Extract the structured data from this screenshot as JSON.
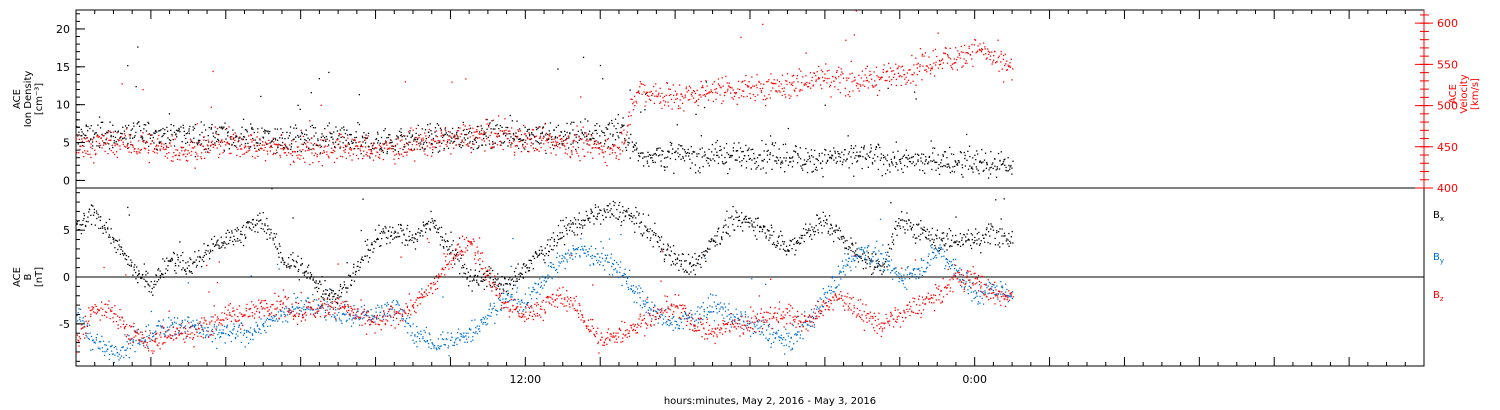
{
  "colors": {
    "density": "#000000",
    "velocity": "#ff0000",
    "bx": "#000000",
    "by": "#0070d0",
    "bz": "#ff0000",
    "axis": "#000000"
  },
  "chart_data": {
    "type": "scatter",
    "x_axis": {
      "title": "hours:minutes, May  2, 2016 - May  3, 2016",
      "range_hours": [
        0,
        36
      ],
      "labeled_ticks": [
        {
          "hour": 12,
          "label": "12:00"
        },
        {
          "hour": 24,
          "label": "0:00"
        }
      ],
      "major_tick_every_hours": 2,
      "minor_tick_every_hours": 0.5
    },
    "panels": [
      {
        "id": "plasma",
        "left_axis": {
          "label_lines": [
            "ACE",
            "Ion Density",
            "[cm⁻³]"
          ],
          "ylim": [
            -1,
            22.5
          ],
          "ticks": [
            0,
            5,
            10,
            15,
            20
          ],
          "tick_labels": [
            "0",
            "5",
            "10",
            "15",
            "20"
          ]
        },
        "right_axis": {
          "label_lines": [
            "ACE",
            "Velocity",
            "[km/s]"
          ],
          "ylim": [
            400,
            616
          ],
          "ticks": [
            400,
            450,
            500,
            550,
            600
          ],
          "tick_labels": [
            "400",
            "450",
            "500",
            "550",
            "600"
          ]
        },
        "series": [
          {
            "key": "density",
            "axis": "left",
            "x_hours": [
              0,
              1,
              2,
              3,
              4,
              5,
              6,
              7,
              8,
              9,
              10,
              11,
              12,
              13,
              14,
              14.5,
              15,
              16,
              17,
              18,
              19,
              20,
              21,
              22,
              23,
              24,
              25
            ],
            "y": [
              6.2,
              6.0,
              6.2,
              6.0,
              5.8,
              5.6,
              5.4,
              5.3,
              5.0,
              5.5,
              5.8,
              6.0,
              6.0,
              6.0,
              6.3,
              6.8,
              3.5,
              3.3,
              3.4,
              3.3,
              3.1,
              2.9,
              3.2,
              2.7,
              2.6,
              2.4,
              2.1
            ],
            "noise": 1.6
          },
          {
            "key": "velocity",
            "axis": "right",
            "x_hours": [
              0,
              1,
              2,
              3,
              4,
              5,
              6,
              7,
              8,
              9,
              10,
              11,
              12,
              13,
              14,
              14.5,
              15,
              16,
              17,
              18,
              19,
              20,
              21,
              22,
              22.5,
              23,
              23.5,
              24,
              25
            ],
            "y": [
              450,
              455,
              450,
              445,
              455,
              450,
              445,
              450,
              445,
              455,
              460,
              465,
              460,
              455,
              450,
              450,
              520,
              510,
              520,
              520,
              525,
              535,
              530,
              540,
              545,
              555,
              560,
              570,
              545
            ],
            "noise": 14
          }
        ]
      },
      {
        "id": "field",
        "left_axis": {
          "label_lines": [
            "ACE",
            "B",
            "[nT]"
          ],
          "ylim": [
            -9.5,
            9.5
          ],
          "ticks": [
            -5,
            0,
            5
          ],
          "tick_labels": [
            "-5",
            "0",
            "5"
          ]
        },
        "zero_line": true,
        "legend_placement": "right",
        "legend": [
          {
            "key": "bx",
            "label": "B",
            "sub": "x"
          },
          {
            "key": "by",
            "label": "B",
            "sub": "y"
          },
          {
            "key": "bz",
            "label": "B",
            "sub": "z"
          }
        ],
        "series": [
          {
            "key": "bx",
            "x_hours": [
              0,
              0.5,
              1,
              1.5,
              2,
              2.5,
              3,
              3.5,
              4,
              4.5,
              5,
              5.5,
              6,
              6.5,
              7,
              7.5,
              8,
              8.5,
              9,
              9.5,
              10,
              10.5,
              11,
              11.5,
              12,
              12.5,
              13,
              13.5,
              14,
              14.5,
              15,
              15.5,
              16,
              16.5,
              17,
              17.5,
              18,
              18.5,
              19,
              19.5,
              20,
              20.5,
              21,
              21.5,
              22,
              22.5,
              23,
              23.5,
              24,
              24.5,
              25
            ],
            "y": [
              5,
              7,
              4,
              1,
              -1,
              2,
              1,
              3,
              4,
              5,
              6,
              2,
              1,
              -1,
              -2,
              1,
              4,
              5,
              4,
              6,
              3,
              0,
              0,
              -1,
              1,
              3,
              5,
              6,
              7,
              7,
              6,
              4,
              2,
              1,
              4,
              6,
              6,
              5,
              3,
              5,
              6,
              4,
              2,
              1,
              6,
              5,
              4,
              4,
              4,
              5,
              4
            ],
            "noise": 1.0
          },
          {
            "key": "by",
            "x_hours": [
              0,
              0.5,
              1,
              1.5,
              2,
              2.5,
              3,
              3.5,
              4,
              4.5,
              5,
              5.5,
              6,
              6.5,
              7,
              7.5,
              8,
              8.5,
              9,
              9.5,
              10,
              10.5,
              11,
              11.5,
              12,
              12.5,
              13,
              13.5,
              14,
              14.5,
              15,
              15.5,
              16,
              16.5,
              17,
              17.5,
              18,
              18.5,
              19,
              19.5,
              20,
              20.5,
              21,
              21.5,
              22,
              22.5,
              23,
              23.5,
              24,
              24.5,
              25
            ],
            "y": [
              -4,
              -7,
              -8,
              -7,
              -6,
              -5,
              -5,
              -6,
              -6,
              -6,
              -5,
              -4,
              -3,
              -3,
              -4,
              -4,
              -4,
              -3,
              -6,
              -7,
              -7,
              -6,
              -4,
              -2,
              -3,
              0,
              2,
              3,
              2,
              1,
              -2,
              -4,
              -5,
              -4,
              -3,
              -4,
              -5,
              -6,
              -7,
              -5,
              -2,
              1,
              3,
              2,
              0,
              1,
              3,
              1,
              -2,
              -1,
              -2
            ],
            "noise": 1.0
          },
          {
            "key": "bz",
            "x_hours": [
              0,
              0.5,
              1,
              1.5,
              2,
              2.5,
              3,
              3.5,
              4,
              4.5,
              5,
              5.5,
              6,
              6.5,
              7,
              7.5,
              8,
              8.5,
              9,
              9.5,
              10,
              10.5,
              11,
              11.5,
              12,
              12.5,
              13,
              13.5,
              14,
              14.5,
              15,
              15.5,
              16,
              16.5,
              17,
              17.5,
              18,
              18.5,
              19,
              19.5,
              20,
              20.5,
              21,
              21.5,
              22,
              22.5,
              23,
              23.5,
              24,
              24.5,
              25
            ],
            "y": [
              -7,
              -3,
              -4,
              -6,
              -7,
              -6,
              -6,
              -5,
              -4,
              -4,
              -3,
              -3,
              -4,
              -3,
              -3,
              -4,
              -5,
              -4,
              -3,
              -1,
              2,
              4,
              0,
              -3,
              -4,
              -3,
              -2,
              -4,
              -7,
              -6,
              -5,
              -4,
              -3,
              -5,
              -6,
              -5,
              -5,
              -4,
              -4,
              -5,
              -3,
              -2,
              -4,
              -5,
              -4,
              -3,
              -2,
              0,
              0,
              -2,
              -2
            ],
            "noise": 1.0
          }
        ]
      }
    ]
  }
}
